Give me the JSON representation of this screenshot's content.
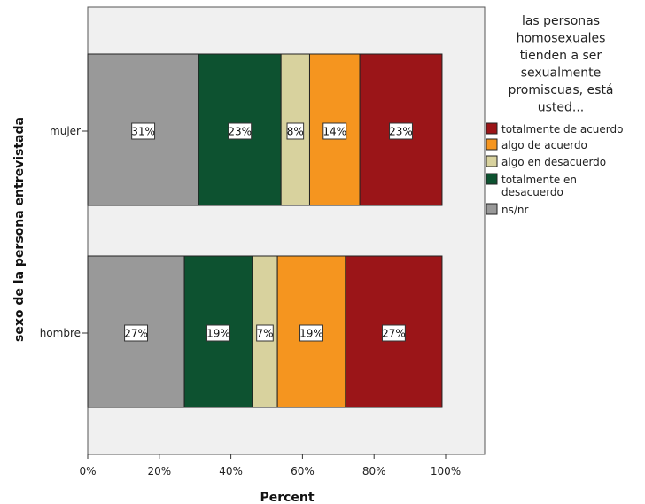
{
  "chart_data": {
    "type": "bar",
    "orientation": "horizontal",
    "stacked": true,
    "categories": [
      "mujer",
      "hombre"
    ],
    "series": [
      {
        "name": "ns/nr",
        "values": [
          31,
          27
        ],
        "labels": [
          "31%",
          "27%"
        ],
        "color": "#999999"
      },
      {
        "name": "totalmente en desacuerdo",
        "values": [
          23,
          19
        ],
        "labels": [
          "23%",
          "19%"
        ],
        "color": "#0d5230"
      },
      {
        "name": "algo en desacuerdo",
        "values": [
          8,
          7
        ],
        "labels": [
          "8%",
          "7%"
        ],
        "color": "#d8d29e"
      },
      {
        "name": "algo de acuerdo",
        "values": [
          14,
          19
        ],
        "labels": [
          "14%",
          "19%"
        ],
        "color": "#f5951f"
      },
      {
        "name": "totalmente de acuerdo",
        "values": [
          23,
          27
        ],
        "labels": [
          "23%",
          "27%"
        ],
        "color": "#9b1518"
      }
    ],
    "xlabel": "Percent",
    "ylabel": "sexo de la persona entrevistada",
    "xlim": [
      0,
      100
    ],
    "xticks": [
      "0%",
      "20%",
      "40%",
      "60%",
      "80%",
      "100%"
    ],
    "legend": {
      "title_lines": [
        "las personas",
        "homosexuales",
        "tienden a ser",
        "sexualmente",
        "promiscuas, está",
        "usted..."
      ],
      "order": [
        "totalmente de acuerdo",
        "algo de acuerdo",
        "algo en desacuerdo",
        "totalmente en desacuerdo",
        "ns/nr"
      ],
      "placement": "right"
    },
    "plot_background": "#f0f0f0",
    "grid": false
  }
}
